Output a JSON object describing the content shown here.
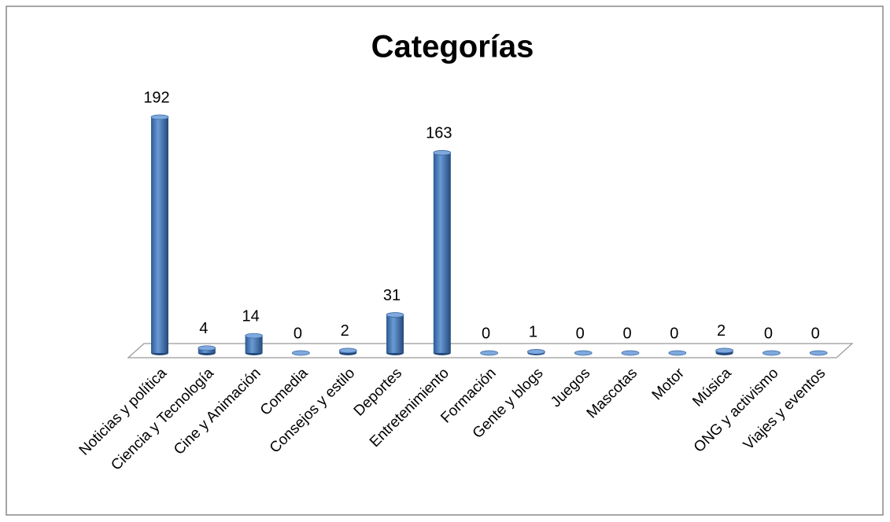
{
  "chart_data": {
    "type": "bar3d",
    "title": "Categorías",
    "categories": [
      "Noticias y política",
      "Ciencia y Tecnología",
      "Cine y Animación",
      "Comedia",
      "Consejos y estilo",
      "Deportes",
      "Entretenimiento",
      "Formación",
      "Gente y blogs",
      "Juegos",
      "Mascotas",
      "Motor",
      "Música",
      "ONG y activismo",
      "Viajes y eventos"
    ],
    "values": [
      192,
      4,
      14,
      0,
      2,
      31,
      163,
      0,
      1,
      0,
      0,
      0,
      2,
      0,
      0
    ],
    "color": "#4a7ebb"
  }
}
